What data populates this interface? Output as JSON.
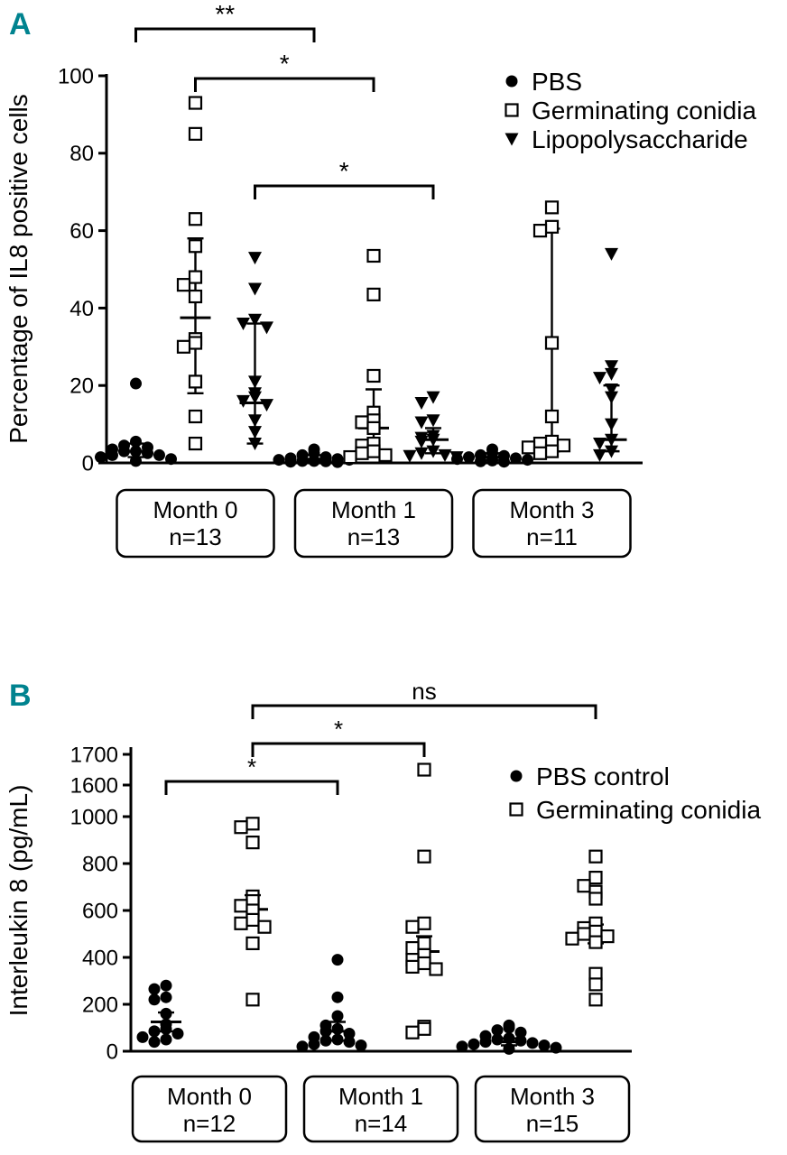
{
  "figure": {
    "panel_a_label": "A",
    "panel_b_label": "B",
    "accent_color": "#00838f",
    "ink_color": "#000000"
  },
  "chart_data": [
    {
      "id": "A",
      "type": "scatter",
      "ylabel": "Percentage of IL8 positive cells",
      "ylim": [
        0,
        100
      ],
      "yticks": [
        0,
        20,
        40,
        60,
        80,
        100
      ],
      "grid": false,
      "legend_position": "top-right",
      "groups": [
        {
          "label": "Month 0",
          "n": "n=13"
        },
        {
          "label": "Month 1",
          "n": "n=13"
        },
        {
          "label": "Month 3",
          "n": "n=11"
        }
      ],
      "series": [
        {
          "name": "PBS",
          "marker": "filled-circle",
          "values_by_group": [
            [
              20.5,
              5.5,
              4.5,
              4,
              3.5,
              3,
              3,
              2.5,
              2,
              2,
              1.5,
              1,
              0.5
            ],
            [
              3.5,
              2.5,
              2,
              1.5,
              1.2,
              1,
              0.8,
              0.8,
              0.5,
              0.5,
              0.4,
              0.3,
              0.2
            ],
            [
              3.5,
              2.5,
              2,
              1.8,
              1.5,
              1.2,
              1,
              0.8,
              0.6,
              0.4,
              0.3
            ]
          ],
          "stats_by_group": [
            {
              "center": 3,
              "lo": 1.5,
              "hi": 5
            },
            {
              "center": 1,
              "lo": 0.5,
              "hi": 2
            },
            {
              "center": 1.5,
              "lo": 0.8,
              "hi": 2.5
            }
          ]
        },
        {
          "name": "Germinating conidia",
          "marker": "open-square",
          "values_by_group": [
            [
              93,
              85,
              63,
              56,
              48,
              46,
              43,
              32,
              31,
              30,
              21,
              12,
              5
            ],
            [
              53.5,
              43.5,
              22.5,
              13,
              11,
              10.5,
              9,
              5,
              4.5,
              3,
              2.5,
              2,
              1.5
            ],
            [
              66,
              61,
              60,
              31,
              12,
              5.5,
              5,
              4.5,
              4,
              3,
              2.5
            ]
          ],
          "stats_by_group": [
            {
              "center": 37.5,
              "lo": 18,
              "hi": 58
            },
            {
              "center": 9,
              "lo": 2.5,
              "hi": 19
            },
            {
              "center": 5,
              "lo": 3,
              "hi": 60.5
            }
          ]
        },
        {
          "name": "Lipopolysaccharide",
          "marker": "filled-triangle-down",
          "values_by_group": [
            [
              53,
              45,
              37,
              36,
              35,
              21,
              18,
              17,
              16,
              15,
              11,
              8,
              5
            ],
            [
              17,
              15.5,
              11,
              10.5,
              7,
              6.5,
              6,
              5.5,
              3,
              2.5,
              2,
              1.8,
              1.5
            ],
            [
              54,
              25,
              23,
              22,
              19,
              17,
              10,
              6,
              5,
              3,
              2
            ]
          ],
          "stats_by_group": [
            {
              "center": 15.5,
              "lo": 5,
              "hi": 36
            },
            {
              "center": 6,
              "lo": 2.5,
              "hi": 9
            },
            {
              "center": 6,
              "lo": 3,
              "hi": 20
            }
          ]
        }
      ],
      "significance": [
        {
          "label": "**",
          "from_group": 0,
          "from_series": 0,
          "to_group": 1,
          "to_series": 0
        },
        {
          "label": "*",
          "from_group": 0,
          "from_series": 1,
          "to_group": 1,
          "to_series": 1
        },
        {
          "label": "*",
          "from_group": 0,
          "from_series": 2,
          "to_group": 1,
          "to_series": 2
        }
      ]
    },
    {
      "id": "B",
      "type": "scatter",
      "ylabel": "Interleukin 8 (pg/mL)",
      "ylim": [
        0,
        1700
      ],
      "yticks": [
        0,
        200,
        400,
        600,
        800,
        1000
      ],
      "yticks_after_break": [
        1600,
        1700
      ],
      "axis_break_between": [
        1000,
        1600
      ],
      "grid": false,
      "legend_position": "top-right",
      "groups": [
        {
          "label": "Month 0",
          "n": "n=12"
        },
        {
          "label": "Month 1",
          "n": "n=14"
        },
        {
          "label": "Month 3",
          "n": "n=15"
        }
      ],
      "series": [
        {
          "name": "PBS control",
          "marker": "filled-circle",
          "values_by_group": [
            [
              280,
              265,
              230,
              220,
              160,
              115,
              95,
              85,
              75,
              60,
              50,
              40
            ],
            [
              390,
              230,
              150,
              110,
              95,
              85,
              75,
              60,
              50,
              45,
              40,
              30,
              25,
              20
            ],
            [
              110,
              100,
              90,
              80,
              65,
              55,
              50,
              45,
              40,
              35,
              30,
              25,
              20,
              15,
              10
            ]
          ],
          "stats_by_group": [
            {
              "center": 125,
              "lo": 85,
              "hi": 165
            },
            {
              "center": 85,
              "lo": 45,
              "hi": 125
            },
            {
              "center": 40,
              "lo": 25,
              "hi": 55
            }
          ]
        },
        {
          "name": "Germinating conidia",
          "marker": "open-square",
          "values_by_group": [
            [
              970,
              955,
              890,
              660,
              640,
              620,
              600,
              560,
              545,
              530,
              460,
              220
            ],
            [
              1650,
              830,
              545,
              530,
              460,
              440,
              410,
              390,
              375,
              360,
              350,
              105,
              95,
              80
            ],
            [
              830,
              740,
              705,
              680,
              650,
              545,
              525,
              510,
              500,
              490,
              480,
              465,
              330,
              285,
              220
            ]
          ],
          "stats_by_group": [
            {
              "center": 605,
              "lo": 545,
              "hi": 665
            },
            {
              "center": 425,
              "lo": 360,
              "hi": 490
            },
            {
              "center": 500,
              "lo": 460,
              "hi": 540
            }
          ]
        }
      ],
      "significance": [
        {
          "label": "ns",
          "from_group": 0,
          "from_series": 1,
          "to_group": 2,
          "to_series": 1
        },
        {
          "label": "*",
          "from_group": 0,
          "from_series": 1,
          "to_group": 1,
          "to_series": 1
        },
        {
          "label": "*",
          "from_group": 0,
          "from_series": 0,
          "to_group": 1,
          "to_series": 0
        }
      ]
    }
  ]
}
